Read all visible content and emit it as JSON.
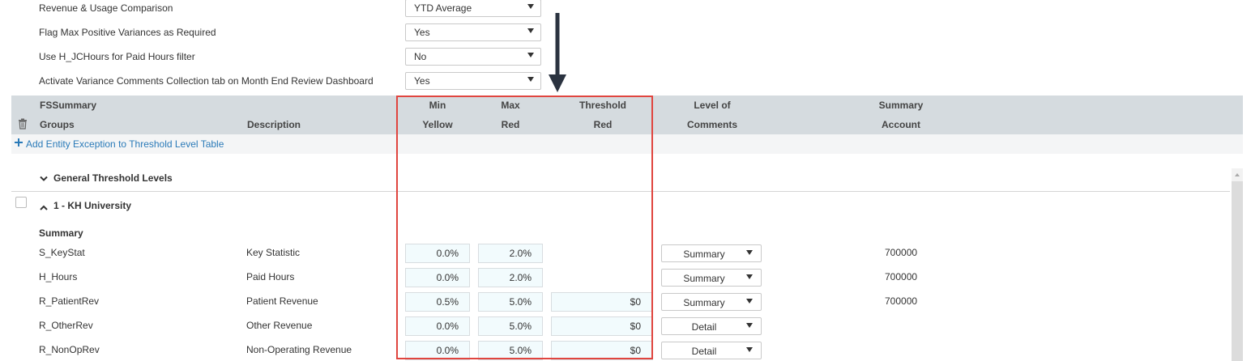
{
  "settings": [
    {
      "label": "Revenue & Usage Comparison",
      "value": "YTD Average"
    },
    {
      "label": "Flag Max Positive Variances as Required",
      "value": "Yes"
    },
    {
      "label": "Use H_JCHours for Paid Hours filter",
      "value": "No"
    },
    {
      "label": "Activate Variance Comments Collection tab on Month End Review Dashboard",
      "value": "Yes"
    }
  ],
  "columns": {
    "groups_top": "FSSummary",
    "groups_bottom": "Groups",
    "description": "Description",
    "min_top": "Min",
    "min_bottom": "Yellow",
    "max_top": "Max",
    "max_bottom": "Red",
    "threshold_top": "Threshold",
    "threshold_bottom": "Red",
    "level_top": "Level of",
    "level_bottom": "Comments",
    "account_top": "Summary",
    "account_bottom": "Account"
  },
  "add_link": "Add Entity Exception to Threshold Level Table",
  "general_section": "General Threshold Levels",
  "entity_section": "1 - KH University",
  "subgroup": "Summary",
  "rows": [
    {
      "code": "S_KeyStat",
      "desc": "Key Statistic",
      "min": "0.0%",
      "max": "2.0%",
      "threshold": "",
      "level": "Summary",
      "account": "700000"
    },
    {
      "code": "H_Hours",
      "desc": "Paid Hours",
      "min": "0.0%",
      "max": "2.0%",
      "threshold": "",
      "level": "Summary",
      "account": "700000"
    },
    {
      "code": "R_PatientRev",
      "desc": "Patient Revenue",
      "min": "0.5%",
      "max": "5.0%",
      "threshold": "$0",
      "level": "Summary",
      "account": "700000"
    },
    {
      "code": "R_OtherRev",
      "desc": "Other Revenue",
      "min": "0.0%",
      "max": "5.0%",
      "threshold": "$0",
      "level": "Detail",
      "account": ""
    },
    {
      "code": "R_NonOpRev",
      "desc": "Non-Operating Revenue",
      "min": "0.0%",
      "max": "5.0%",
      "threshold": "$0",
      "level": "Detail",
      "account": ""
    }
  ],
  "colors": {
    "highlight_box": "#e0453f",
    "arrow": "#2b3340",
    "header_band": "#d5dbdf",
    "link": "#2a7ab8"
  },
  "icons": {
    "delete": "trash-icon",
    "add": "plus-icon",
    "expand": "chevron-down-icon",
    "collapse": "chevron-up-icon",
    "pointer": "down-arrow-annotation"
  }
}
